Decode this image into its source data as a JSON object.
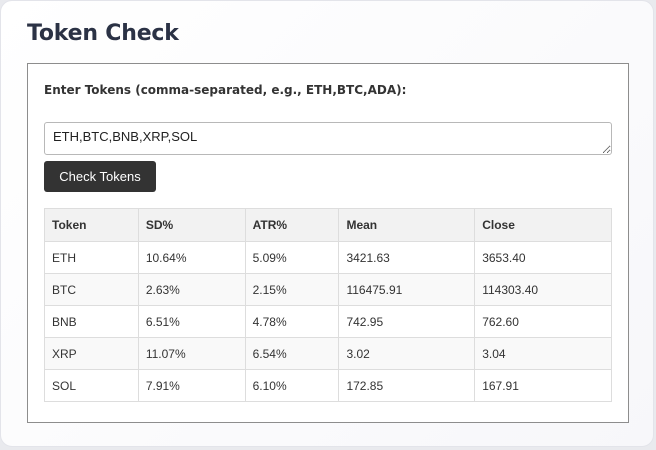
{
  "page": {
    "title": "Token Check"
  },
  "form": {
    "label": "Enter Tokens (comma-separated, e.g., ETH,BTC,ADA):",
    "input_value": "ETH,BTC,BNB,XRP,SOL",
    "button_label": "Check Tokens"
  },
  "table": {
    "headers": [
      "Token",
      "SD%",
      "ATR%",
      "Mean",
      "Close"
    ],
    "rows": [
      [
        "ETH",
        "10.64%",
        "5.09%",
        "3421.63",
        "3653.40"
      ],
      [
        "BTC",
        "2.63%",
        "2.15%",
        "116475.91",
        "114303.40"
      ],
      [
        "BNB",
        "6.51%",
        "4.78%",
        "742.95",
        "762.60"
      ],
      [
        "XRP",
        "11.07%",
        "6.54%",
        "3.02",
        "3.04"
      ],
      [
        "SOL",
        "7.91%",
        "6.10%",
        "172.85",
        "167.91"
      ]
    ]
  }
}
